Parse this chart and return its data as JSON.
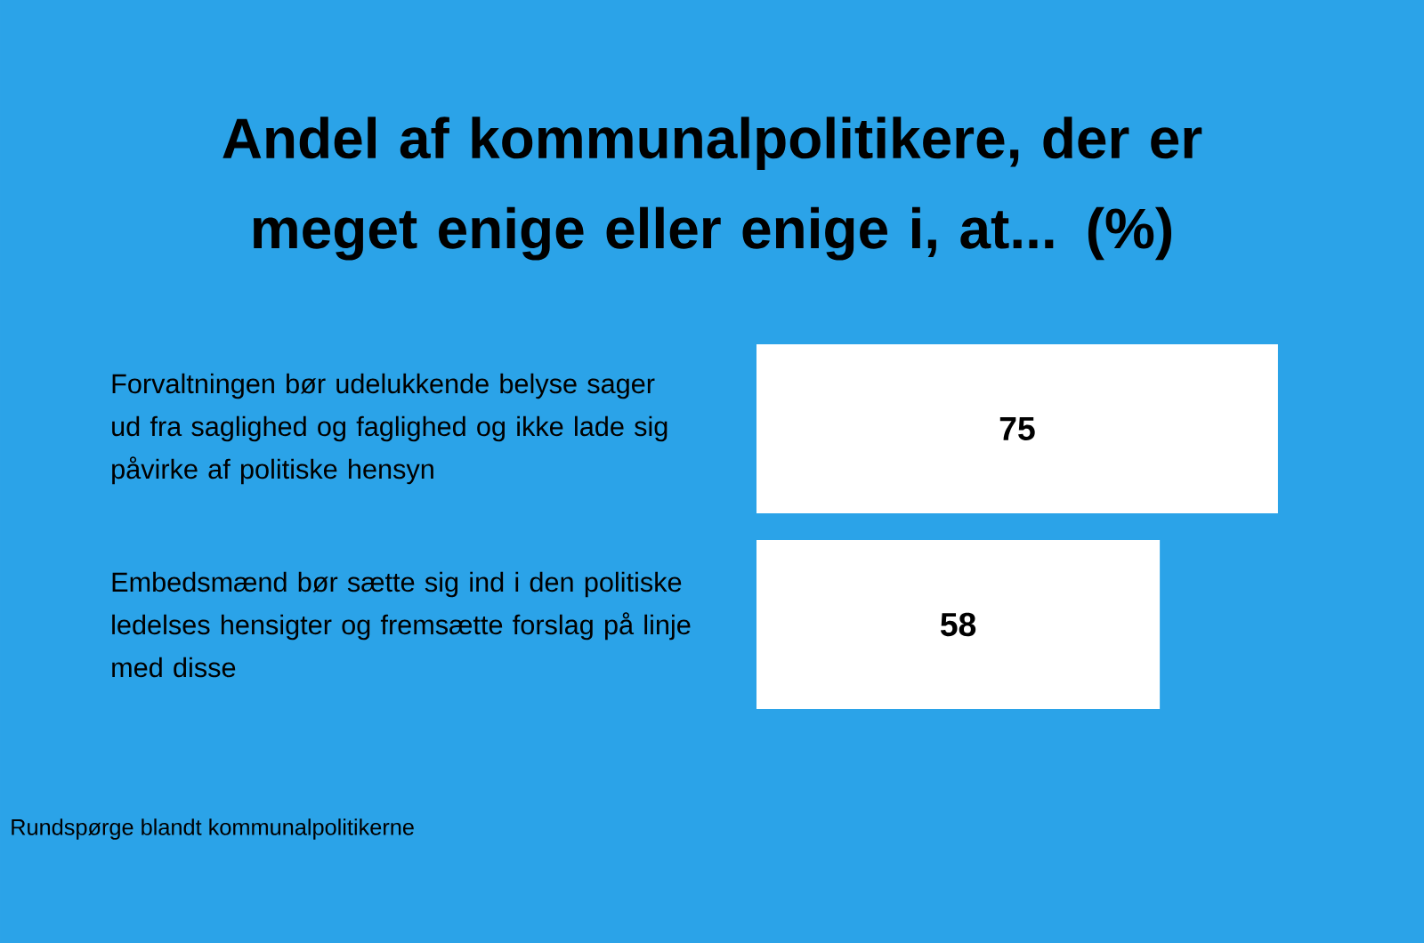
{
  "chart_data": {
    "type": "bar",
    "orientation": "horizontal",
    "title": "Andel af kommunalpolitikere, der er meget enige eller enige i, at... (%)",
    "categories": [
      "Forvaltningen bør udelukkende belyse sager ud fra saglighed og faglighed og ikke lade sig påvirke af politiske hensyn",
      "Embedsmænd bør sætte sig ind i den politiske ledelses hensigter og fremsætte forslag på linje med disse"
    ],
    "values": [
      75,
      58
    ],
    "color": "#ffffff",
    "data_labels": true,
    "xlim": [
      0,
      96
    ],
    "annotations": [
      "Rundspørge blandt kommunalpolitikerne"
    ]
  }
}
